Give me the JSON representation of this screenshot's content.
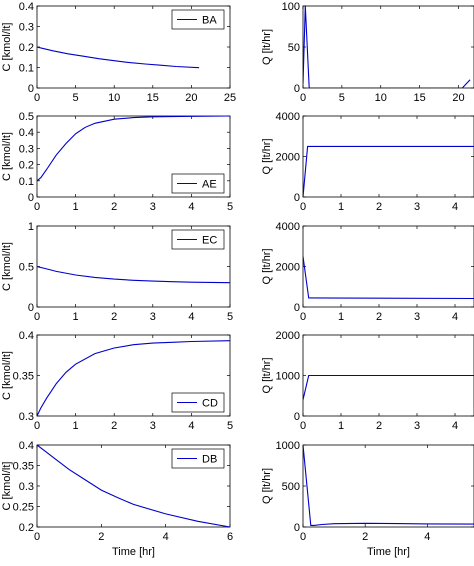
{
  "chart_data": [
    {
      "id": "C-BA",
      "type": "line",
      "series": [
        {
          "name": "BA",
          "color": "#0000cc",
          "x": [
            0,
            2,
            4,
            6,
            8,
            10,
            12,
            14,
            16,
            18,
            21
          ],
          "y": [
            0.2,
            0.182,
            0.167,
            0.155,
            0.143,
            0.133,
            0.124,
            0.117,
            0.111,
            0.105,
            0.099
          ]
        }
      ],
      "ylabel": "C [kmol/lt]",
      "xlabel": "",
      "xlim": [
        0,
        25
      ],
      "ylim": [
        0,
        0.4
      ],
      "xticks": [
        0,
        5,
        10,
        15,
        20,
        25
      ],
      "yticks": [
        0,
        0.1,
        0.2,
        0.3,
        0.4
      ],
      "xtick_labels": [
        "0",
        "5",
        "10",
        "15",
        "20",
        "25"
      ],
      "ytick_labels": [
        "0",
        "0.1",
        "0.2",
        "0.3",
        "0.4"
      ],
      "legend": "top-right"
    },
    {
      "id": "Q-BA",
      "type": "line",
      "series": [
        {
          "name": "",
          "color": "#0000cc",
          "x": [
            0,
            0.3,
            0.8,
            20.5,
            21.5
          ],
          "y": [
            5,
            100,
            0,
            0,
            10
          ]
        }
      ],
      "ylabel": "Q [lt/hr]",
      "xlabel": "",
      "xlim": [
        0,
        22
      ],
      "ylim": [
        0,
        100
      ],
      "xticks": [
        0,
        5,
        10,
        15,
        20
      ],
      "yticks": [
        0,
        50,
        100
      ],
      "xtick_labels": [
        "0",
        "5",
        "10",
        "15",
        "20"
      ],
      "ytick_labels": [
        "0",
        "50",
        "100"
      ]
    },
    {
      "id": "C-AE",
      "type": "line",
      "series": [
        {
          "name": "AE",
          "color": "#0000cc",
          "x": [
            0,
            0.1,
            0.25,
            0.5,
            0.75,
            1,
            1.25,
            1.5,
            2,
            2.5,
            3,
            4,
            5
          ],
          "y": [
            0.1,
            0.12,
            0.17,
            0.26,
            0.33,
            0.39,
            0.43,
            0.455,
            0.48,
            0.49,
            0.495,
            0.498,
            0.5
          ]
        }
      ],
      "ylabel": "C [kmol/lt]",
      "xlabel": "",
      "xlim": [
        0,
        5
      ],
      "ylim": [
        0,
        0.5
      ],
      "xticks": [
        0,
        1,
        2,
        3,
        4,
        5
      ],
      "yticks": [
        0,
        0.1,
        0.2,
        0.3,
        0.4,
        0.5
      ],
      "xtick_labels": [
        "0",
        "1",
        "2",
        "3",
        "4",
        "5"
      ],
      "ytick_labels": [
        "0",
        "0.1",
        "0.2",
        "0.3",
        "0.4",
        "0.5"
      ],
      "legend": "bottom-right"
    },
    {
      "id": "Q-AE",
      "type": "line",
      "series": [
        {
          "name": "",
          "color": "#0000cc",
          "x": [
            0,
            0.12,
            0.15,
            4.5
          ],
          "y": [
            0,
            2500,
            2500,
            2500
          ]
        }
      ],
      "ylabel": "Q [lt/hr]",
      "xlabel": "",
      "xlim": [
        0,
        4.5
      ],
      "ylim": [
        0,
        4000
      ],
      "xticks": [
        0,
        1,
        2,
        3,
        4
      ],
      "yticks": [
        0,
        2000,
        4000
      ],
      "xtick_labels": [
        "0",
        "1",
        "2",
        "3",
        "4"
      ],
      "ytick_labels": [
        "0",
        "2000",
        "4000"
      ]
    },
    {
      "id": "C-EC",
      "type": "line",
      "series": [
        {
          "name": "EC",
          "color": "#0000cc",
          "x": [
            0,
            0.25,
            0.5,
            1,
            1.5,
            2,
            2.5,
            3,
            3.5,
            4,
            5
          ],
          "y": [
            0.5,
            0.47,
            0.44,
            0.395,
            0.365,
            0.345,
            0.33,
            0.32,
            0.312,
            0.306,
            0.3
          ]
        }
      ],
      "ylabel": "C [kmol/lt]",
      "xlabel": "",
      "xlim": [
        0,
        5
      ],
      "ylim": [
        0,
        1
      ],
      "xticks": [
        0,
        1,
        2,
        3,
        4,
        5
      ],
      "yticks": [
        0,
        0.5,
        1
      ],
      "xtick_labels": [
        "0",
        "1",
        "2",
        "3",
        "4",
        "5"
      ],
      "ytick_labels": [
        "0",
        "0.5",
        "1"
      ],
      "legend": "top-right"
    },
    {
      "id": "Q-EC",
      "type": "line",
      "series": [
        {
          "name": "",
          "color": "#0000cc",
          "x": [
            0,
            0.15,
            0.2,
            4.5
          ],
          "y": [
            2500,
            450,
            450,
            420
          ]
        }
      ],
      "ylabel": "Q [lt/hr]",
      "xlabel": "",
      "xlim": [
        0,
        4.5
      ],
      "ylim": [
        0,
        4000
      ],
      "xticks": [
        0,
        1,
        2,
        3,
        4
      ],
      "yticks": [
        0,
        2000,
        4000
      ],
      "xtick_labels": [
        "0",
        "1",
        "2",
        "3",
        "4"
      ],
      "ytick_labels": [
        "0",
        "2000",
        "4000"
      ]
    },
    {
      "id": "C-CD",
      "type": "line",
      "series": [
        {
          "name": "CD",
          "color": "#0000cc",
          "x": [
            0,
            0.1,
            0.25,
            0.5,
            0.75,
            1,
            1.5,
            2,
            2.5,
            3,
            3.5,
            4,
            5
          ],
          "y": [
            0.3,
            0.31,
            0.322,
            0.34,
            0.354,
            0.364,
            0.377,
            0.384,
            0.388,
            0.39,
            0.391,
            0.392,
            0.393
          ]
        }
      ],
      "ylabel": "C [kmol/lt]",
      "xlabel": "",
      "xlim": [
        0,
        5
      ],
      "ylim": [
        0.3,
        0.4
      ],
      "xticks": [
        0,
        1,
        2,
        3,
        4,
        5
      ],
      "yticks": [
        0.3,
        0.35,
        0.4
      ],
      "xtick_labels": [
        "0",
        "1",
        "2",
        "3",
        "4",
        "5"
      ],
      "ytick_labels": [
        "0.3",
        "0.35",
        "0.4"
      ],
      "legend": "bottom-right"
    },
    {
      "id": "Q-CD",
      "type": "line",
      "series": [
        {
          "name": "",
          "color": "#0000cc",
          "x": [
            0,
            0.15,
            0.2,
            4.5
          ],
          "y": [
            400,
            1000,
            1000,
            1000
          ]
        }
      ],
      "ylabel": "Q [lt/hr]",
      "xlabel": "",
      "xlim": [
        0,
        4.5
      ],
      "ylim": [
        0,
        2000
      ],
      "xticks": [
        0,
        1,
        2,
        3,
        4
      ],
      "yticks": [
        0,
        1000,
        2000
      ],
      "xtick_labels": [
        "0",
        "1",
        "2",
        "3",
        "4"
      ],
      "ytick_labels": [
        "0",
        "1000",
        "2000"
      ]
    },
    {
      "id": "C-DB",
      "type": "line",
      "series": [
        {
          "name": "DB",
          "color": "#0000cc",
          "x": [
            0,
            0.25,
            0.5,
            1,
            1.5,
            2,
            2.5,
            3,
            4,
            5,
            6
          ],
          "y": [
            0.4,
            0.385,
            0.37,
            0.34,
            0.315,
            0.29,
            0.272,
            0.255,
            0.232,
            0.214,
            0.2
          ]
        }
      ],
      "ylabel": "C [kmol/lt]",
      "xlabel": "Time [hr]",
      "xlim": [
        0,
        6
      ],
      "ylim": [
        0.2,
        0.4
      ],
      "xticks": [
        0,
        2,
        4,
        6
      ],
      "yticks": [
        0.2,
        0.25,
        0.3,
        0.35,
        0.4
      ],
      "xtick_labels": [
        "0",
        "2",
        "4",
        "6"
      ],
      "ytick_labels": [
        "0.2",
        "0.25",
        "0.3",
        "0.35",
        "0.4"
      ],
      "legend": "top-right"
    },
    {
      "id": "Q-DB",
      "type": "line",
      "series": [
        {
          "name": "",
          "color": "#0000cc",
          "x": [
            0,
            0.25,
            0.35,
            0.6,
            1,
            2,
            3,
            4,
            5.5
          ],
          "y": [
            1000,
            20,
            20,
            30,
            40,
            45,
            42,
            38,
            35
          ]
        }
      ],
      "ylabel": "Q [lt/hr]",
      "xlabel": "Time [hr]",
      "xlim": [
        0,
        5.5
      ],
      "ylim": [
        0,
        1000
      ],
      "xticks": [
        0,
        2,
        4
      ],
      "yticks": [
        0,
        500,
        1000
      ],
      "xtick_labels": [
        "0",
        "2",
        "4"
      ],
      "ytick_labels": [
        "0",
        "500",
        "1000"
      ]
    }
  ]
}
